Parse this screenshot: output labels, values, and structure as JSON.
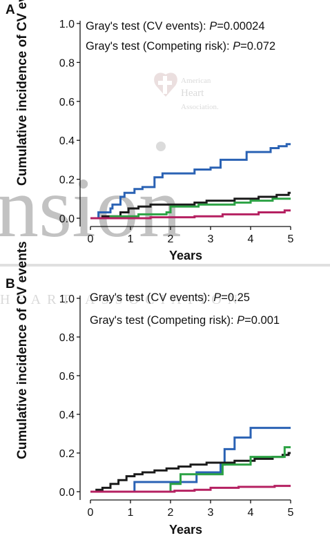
{
  "chart_data": [
    {
      "type": "line",
      "panel_label": "A",
      "xlabel": "Years",
      "ylabel": "Cumulative incidence of CV events",
      "xlim": [
        0,
        5
      ],
      "ylim": [
        0,
        1.0
      ],
      "x_ticks": [
        "0",
        "1",
        "2",
        "3",
        "4",
        "5"
      ],
      "y_ticks": [
        "0.0",
        "0.2",
        "0.4",
        "0.6",
        "0.8",
        "1.0"
      ],
      "annotations": [
        {
          "prefix": "Gray's test (CV events): ",
          "p_label": "P",
          "p_value": "=0.00024"
        },
        {
          "prefix": "Gray's test (Competing risk): ",
          "p_label": "P",
          "p_value": "=0.072"
        }
      ],
      "series": [
        {
          "color": "#2a62b4",
          "points": [
            [
              0,
              0
            ],
            [
              0.2,
              0
            ],
            [
              0.2,
              0.03
            ],
            [
              0.5,
              0.03
            ],
            [
              0.5,
              0.05
            ],
            [
              0.55,
              0.05
            ],
            [
              0.55,
              0.07
            ],
            [
              0.75,
              0.07
            ],
            [
              0.75,
              0.11
            ],
            [
              0.85,
              0.11
            ],
            [
              0.85,
              0.13
            ],
            [
              1.1,
              0.13
            ],
            [
              1.1,
              0.15
            ],
            [
              1.3,
              0.15
            ],
            [
              1.3,
              0.16
            ],
            [
              1.6,
              0.16
            ],
            [
              1.6,
              0.21
            ],
            [
              1.8,
              0.21
            ],
            [
              1.8,
              0.23
            ],
            [
              2.6,
              0.23
            ],
            [
              2.6,
              0.25
            ],
            [
              3.0,
              0.25
            ],
            [
              3.0,
              0.26
            ],
            [
              3.25,
              0.26
            ],
            [
              3.25,
              0.3
            ],
            [
              3.9,
              0.3
            ],
            [
              3.9,
              0.34
            ],
            [
              4.5,
              0.34
            ],
            [
              4.5,
              0.36
            ],
            [
              4.7,
              0.36
            ],
            [
              4.7,
              0.37
            ],
            [
              4.9,
              0.37
            ],
            [
              4.9,
              0.38
            ],
            [
              5.0,
              0.38
            ]
          ]
        },
        {
          "color": "#1a1a1a",
          "points": [
            [
              0,
              0
            ],
            [
              0.3,
              0
            ],
            [
              0.3,
              0.01
            ],
            [
              0.75,
              0.01
            ],
            [
              0.75,
              0.03
            ],
            [
              0.95,
              0.03
            ],
            [
              0.95,
              0.05
            ],
            [
              1.2,
              0.05
            ],
            [
              1.2,
              0.06
            ],
            [
              1.5,
              0.06
            ],
            [
              1.5,
              0.07
            ],
            [
              2.6,
              0.07
            ],
            [
              2.6,
              0.08
            ],
            [
              2.9,
              0.08
            ],
            [
              2.9,
              0.09
            ],
            [
              3.6,
              0.09
            ],
            [
              3.6,
              0.1
            ],
            [
              4.2,
              0.1
            ],
            [
              4.2,
              0.11
            ],
            [
              4.65,
              0.11
            ],
            [
              4.65,
              0.12
            ],
            [
              4.95,
              0.12
            ],
            [
              4.95,
              0.13
            ],
            [
              5.0,
              0.13
            ]
          ]
        },
        {
          "color": "#2ca244",
          "points": [
            [
              0,
              0
            ],
            [
              0.5,
              0
            ],
            [
              0.5,
              0.01
            ],
            [
              1.2,
              0.01
            ],
            [
              1.2,
              0.02
            ],
            [
              1.9,
              0.02
            ],
            [
              1.9,
              0.03
            ],
            [
              2.0,
              0.03
            ],
            [
              2.0,
              0.06
            ],
            [
              2.7,
              0.06
            ],
            [
              2.7,
              0.07
            ],
            [
              3.6,
              0.07
            ],
            [
              3.6,
              0.08
            ],
            [
              4.0,
              0.08
            ],
            [
              4.0,
              0.09
            ],
            [
              4.55,
              0.09
            ],
            [
              4.55,
              0.1
            ],
            [
              5.0,
              0.1
            ]
          ]
        },
        {
          "color": "#b52061",
          "points": [
            [
              0,
              0
            ],
            [
              1.5,
              0
            ],
            [
              1.5,
              0.005
            ],
            [
              2.6,
              0.005
            ],
            [
              2.6,
              0.01
            ],
            [
              3.3,
              0.01
            ],
            [
              3.3,
              0.02
            ],
            [
              4.2,
              0.02
            ],
            [
              4.2,
              0.03
            ],
            [
              4.85,
              0.03
            ],
            [
              4.85,
              0.04
            ],
            [
              5.0,
              0.04
            ]
          ]
        }
      ]
    },
    {
      "type": "line",
      "panel_label": "B",
      "xlabel": "Years",
      "ylabel": "Cumulative incidence of CV events",
      "xlim": [
        0,
        5
      ],
      "ylim": [
        0,
        1.0
      ],
      "x_ticks": [
        "0",
        "1",
        "2",
        "3",
        "4",
        "5"
      ],
      "y_ticks": [
        "0.0",
        "0.2",
        "0.4",
        "0.6",
        "0.8",
        "1.0"
      ],
      "annotations": [
        {
          "prefix": "Gray's test (CV events): ",
          "p_label": "P",
          "p_value": "=0.25"
        },
        {
          "prefix": "Gray's test (Competing risk): ",
          "p_label": "P",
          "p_value": "=0.001"
        }
      ],
      "series": [
        {
          "color": "#2a62b4",
          "points": [
            [
              0,
              0
            ],
            [
              1.1,
              0
            ],
            [
              1.1,
              0.05
            ],
            [
              2.65,
              0.05
            ],
            [
              2.65,
              0.1
            ],
            [
              3.25,
              0.1
            ],
            [
              3.25,
              0.14
            ],
            [
              3.35,
              0.14
            ],
            [
              3.35,
              0.22
            ],
            [
              3.6,
              0.22
            ],
            [
              3.6,
              0.28
            ],
            [
              4.0,
              0.28
            ],
            [
              4.0,
              0.33
            ],
            [
              5.0,
              0.33
            ]
          ]
        },
        {
          "color": "#1a1a1a",
          "points": [
            [
              0,
              0
            ],
            [
              0.15,
              0
            ],
            [
              0.15,
              0.01
            ],
            [
              0.3,
              0.01
            ],
            [
              0.3,
              0.02
            ],
            [
              0.5,
              0.02
            ],
            [
              0.5,
              0.04
            ],
            [
              0.7,
              0.04
            ],
            [
              0.7,
              0.06
            ],
            [
              0.9,
              0.06
            ],
            [
              0.9,
              0.08
            ],
            [
              1.1,
              0.08
            ],
            [
              1.1,
              0.09
            ],
            [
              1.3,
              0.09
            ],
            [
              1.3,
              0.1
            ],
            [
              1.6,
              0.1
            ],
            [
              1.6,
              0.11
            ],
            [
              1.9,
              0.11
            ],
            [
              1.9,
              0.12
            ],
            [
              2.2,
              0.12
            ],
            [
              2.2,
              0.13
            ],
            [
              2.5,
              0.13
            ],
            [
              2.5,
              0.14
            ],
            [
              2.9,
              0.14
            ],
            [
              2.9,
              0.15
            ],
            [
              3.6,
              0.15
            ],
            [
              3.6,
              0.16
            ],
            [
              4.1,
              0.16
            ],
            [
              4.1,
              0.17
            ],
            [
              4.55,
              0.17
            ],
            [
              4.55,
              0.18
            ],
            [
              4.8,
              0.18
            ],
            [
              4.8,
              0.19
            ],
            [
              4.95,
              0.19
            ],
            [
              4.95,
              0.2
            ],
            [
              5.0,
              0.2
            ]
          ]
        },
        {
          "color": "#2ca244",
          "points": [
            [
              0,
              0
            ],
            [
              2.0,
              0
            ],
            [
              2.0,
              0.04
            ],
            [
              2.25,
              0.04
            ],
            [
              2.25,
              0.09
            ],
            [
              3.3,
              0.09
            ],
            [
              3.3,
              0.14
            ],
            [
              4.0,
              0.14
            ],
            [
              4.0,
              0.18
            ],
            [
              4.85,
              0.18
            ],
            [
              4.85,
              0.23
            ],
            [
              5.0,
              0.23
            ]
          ]
        },
        {
          "color": "#b52061",
          "points": [
            [
              0,
              0
            ],
            [
              2.1,
              0
            ],
            [
              2.1,
              0.005
            ],
            [
              2.6,
              0.005
            ],
            [
              2.6,
              0.01
            ],
            [
              3.0,
              0.01
            ],
            [
              3.0,
              0.02
            ],
            [
              3.7,
              0.02
            ],
            [
              3.7,
              0.025
            ],
            [
              4.6,
              0.025
            ],
            [
              4.6,
              0.03
            ],
            [
              5.0,
              0.03
            ]
          ]
        }
      ]
    }
  ],
  "watermark": {
    "logo_text": [
      "American",
      "Heart",
      "Association."
    ],
    "large_text": "nsion",
    "band_text": "HEART ASSOCIATION"
  }
}
